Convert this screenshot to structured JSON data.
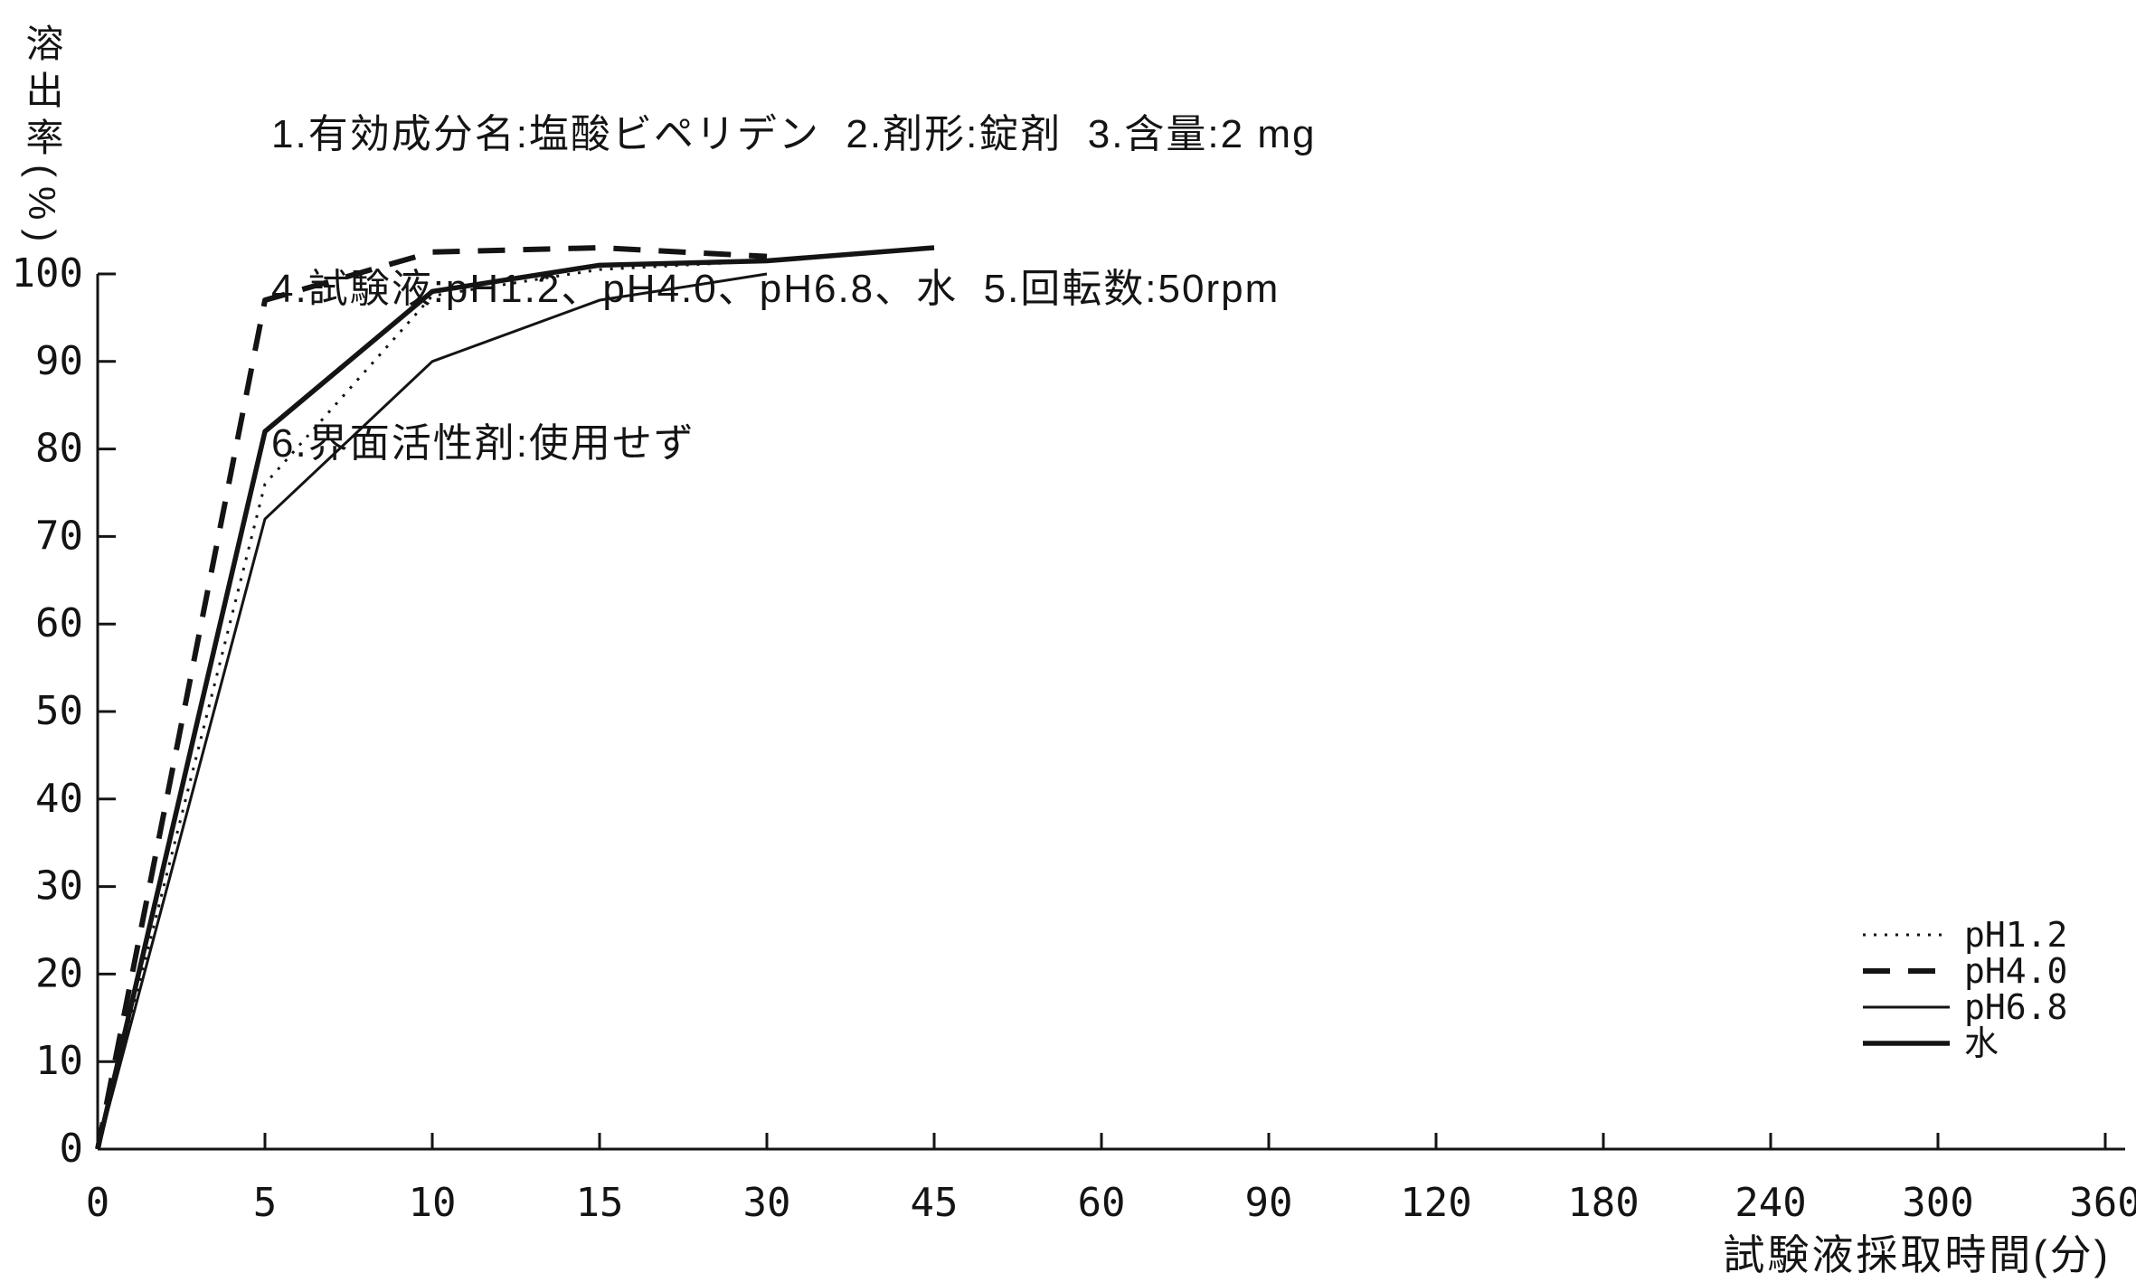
{
  "header": {
    "line1": "1.有効成分名:塩酸ビペリデン  2.剤形:錠剤  3.含量:2 mg",
    "line2": "4.試験液:pH1.2、pH4.0、pH6.8、水  5.回転数:50rpm",
    "line3": "6.界面活性剤:使用せず"
  },
  "chart_data": {
    "type": "line",
    "title": "",
    "xlabel": "試験液採取時間(分)",
    "ylabel": "溶出率(%)",
    "x_ticks": [
      0,
      5,
      10,
      15,
      30,
      45,
      60,
      90,
      120,
      180,
      240,
      300,
      360
    ],
    "x_tick_spacing": "equal spacing between labeled ticks (non-linear time axis)",
    "y_ticks": [
      0,
      10,
      20,
      30,
      40,
      50,
      60,
      70,
      80,
      90,
      100
    ],
    "ylim": [
      0,
      100
    ],
    "grid": false,
    "legend_position": "right-middle",
    "series": [
      {
        "name": "pH1.2",
        "style": "dotted",
        "x": [
          0,
          5,
          10,
          15,
          30
        ],
        "y": [
          0,
          76,
          97.5,
          100.5,
          101.5
        ]
      },
      {
        "name": "pH4.0",
        "style": "dashed",
        "x": [
          0,
          5,
          10,
          15,
          30
        ],
        "y": [
          0,
          97,
          102.5,
          103,
          102
        ]
      },
      {
        "name": "pH6.8",
        "style": "thin-solid",
        "x": [
          0,
          5,
          10,
          15,
          30
        ],
        "y": [
          0,
          72,
          90,
          97,
          100
        ]
      },
      {
        "name": "水",
        "style": "thick-solid",
        "x": [
          0,
          5,
          10,
          15,
          30,
          45
        ],
        "y": [
          0,
          82,
          98,
          101,
          101.5,
          103
        ]
      }
    ],
    "colors": {
      "ink": "#141414",
      "paper": "#ffffff"
    }
  }
}
